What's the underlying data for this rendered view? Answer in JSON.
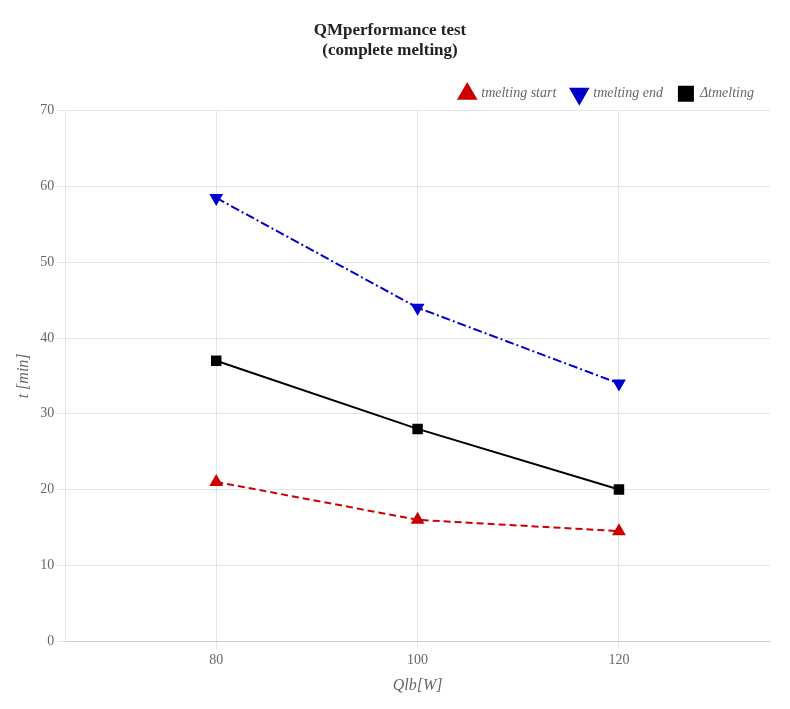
{
  "chart_data": {
    "type": "line",
    "title": "QMperformance test\n(complete melting)",
    "x_label": "Qlb[W]",
    "y_label": "t [min]",
    "x": [
      80,
      100,
      120
    ],
    "series": [
      {
        "name": "tmelting start",
        "color": "#cc0000",
        "marker": "triangle-up",
        "line_style": "dashed",
        "values": [
          21.0,
          16.0,
          14.5
        ]
      },
      {
        "name": "tmelting end",
        "color": "#0000cc",
        "marker": "triangle-down",
        "line_style": "dashdot",
        "values": [
          58.5,
          44.0,
          34.0
        ]
      },
      {
        "name": "Δtmelting",
        "color": "#000000",
        "marker": "square",
        "line_style": "solid",
        "values": [
          37.0,
          28.0,
          20.0
        ]
      }
    ],
    "xlim": [
      65,
      135
    ],
    "xticks": [
      80,
      100,
      120
    ],
    "ylim": [
      0,
      70
    ],
    "yticks": [
      0,
      10,
      20,
      30,
      40,
      50,
      60,
      70
    ],
    "grid": true,
    "legend": "upper right"
  }
}
